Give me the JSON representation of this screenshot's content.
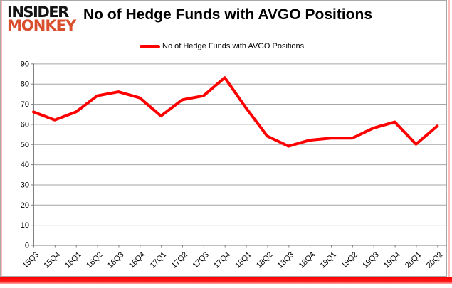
{
  "logo": {
    "line1": "INSIDER",
    "line2": "MONKEY"
  },
  "title": "No of Hedge Funds with AVGO Positions",
  "legend": {
    "label": "No of Hedge Funds with AVGO Positions",
    "marker_color": "#FF0000"
  },
  "chart_data": {
    "type": "line",
    "title": "No of Hedge Funds with AVGO Positions",
    "categories": [
      "15Q3",
      "15Q4",
      "16Q1",
      "16Q2",
      "16Q3",
      "16Q4",
      "17Q1",
      "17Q2",
      "17Q3",
      "17Q4",
      "18Q1",
      "18Q2",
      "18Q3",
      "18Q4",
      "19Q1",
      "19Q2",
      "19Q3",
      "19Q4",
      "20Q1",
      "20Q2"
    ],
    "series": [
      {
        "name": "No of Hedge Funds with AVGO Positions",
        "color": "#FF0000",
        "values": [
          66,
          62,
          66,
          74,
          76,
          73,
          64,
          72,
          74,
          83,
          68,
          54,
          49,
          52,
          53,
          53,
          58,
          61,
          50,
          59
        ]
      }
    ],
    "xlabel": "",
    "ylabel": "",
    "ylim": [
      0,
      90
    ],
    "ytick_step": 10,
    "grid": true,
    "legend_position": "top"
  },
  "colors": {
    "line": "#FF0000",
    "gridline": "#a6a6a6",
    "axis": "#808080",
    "tick_label": "#000000",
    "frame_border": "#a8a8a8",
    "bottom_bar": "#FF0000",
    "logo_accent": "#d94e2c"
  }
}
